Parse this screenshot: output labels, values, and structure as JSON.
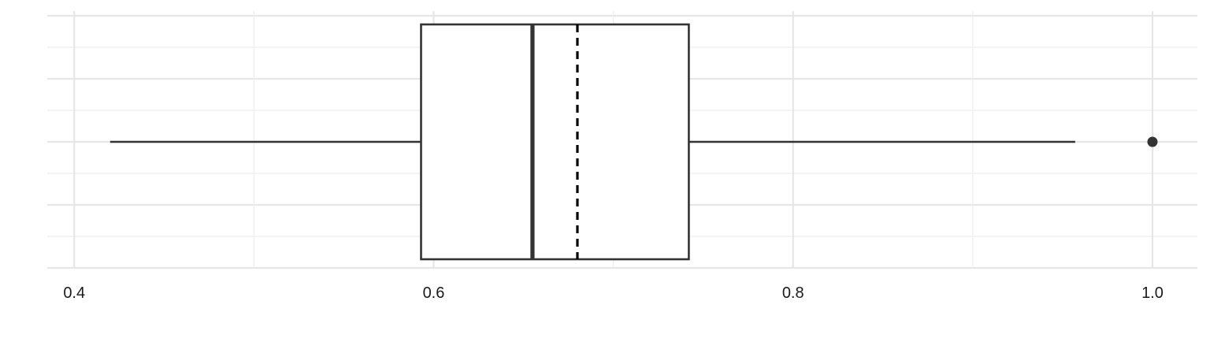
{
  "chart_data": {
    "type": "boxplot",
    "orientation": "horizontal",
    "title": "",
    "xlabel": "",
    "ylabel": "",
    "xlim": [
      0.385,
      1.025
    ],
    "x_ticks": [
      0.4,
      0.6,
      0.8,
      1.0
    ],
    "x_tick_labels": [
      "0.4",
      "0.6",
      "0.8",
      "1.0"
    ],
    "grid": true,
    "legend": "none",
    "box": {
      "whisker_low": 0.42,
      "q1": 0.593,
      "median": 0.655,
      "mean": 0.68,
      "q3": 0.742,
      "whisker_high": 0.957,
      "outliers": [
        1.0
      ]
    },
    "colors": {
      "box_outline": "#333333",
      "box_fill": "#ffffff",
      "mean_line": "#000000",
      "grid": "#e6e6e6"
    }
  }
}
